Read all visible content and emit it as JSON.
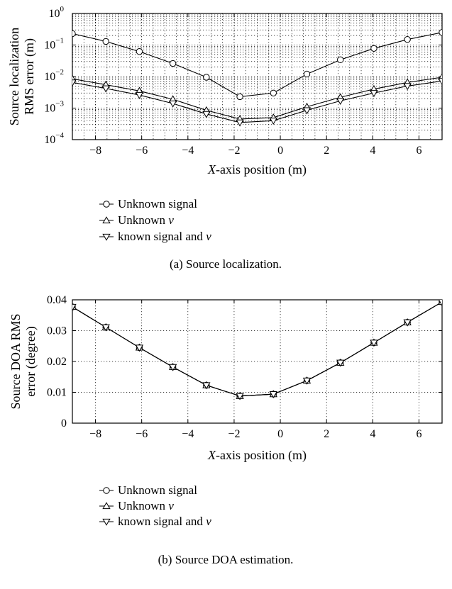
{
  "chart_data": [
    {
      "type": "line",
      "xlabel_prefix": "X",
      "xlabel_rest": "-axis position (m)",
      "ylabel_lines": [
        "Source localization",
        "RMS error (m)"
      ],
      "yscale": "log",
      "xlim": [
        -9,
        7
      ],
      "ylim": [
        0.0001,
        1
      ],
      "grid": true,
      "x_ticks": [
        "−8",
        "−6",
        "−4",
        "−2",
        "0",
        "2",
        "4",
        "6"
      ],
      "x_tick_values": [
        -8,
        -6,
        -4,
        -2,
        0,
        2,
        4,
        6
      ],
      "y_ticks": [
        {
          "base": "10",
          "exp": "0",
          "value": 1
        },
        {
          "base": "10",
          "exp": "−1",
          "value": 0.1
        },
        {
          "base": "10",
          "exp": "−2",
          "value": 0.01
        },
        {
          "base": "10",
          "exp": "−3",
          "value": 0.001
        },
        {
          "base": "10",
          "exp": "−4",
          "value": 0.0001
        }
      ],
      "x": [
        -9,
        -7.55,
        -6.1,
        -4.65,
        -3.2,
        -1.75,
        -0.3,
        1.15,
        2.6,
        4.05,
        5.5,
        7
      ],
      "series": [
        {
          "name": "Unknown signal",
          "marker": "circle",
          "values": [
            0.23,
            0.13,
            0.062,
            0.026,
            0.0095,
            0.0023,
            0.003,
            0.012,
            0.034,
            0.078,
            0.15,
            0.25
          ]
        },
        {
          "name": "Unknown ν",
          "marker": "triangle-up",
          "values": [
            0.0085,
            0.0055,
            0.0035,
            0.0019,
            0.00085,
            0.00045,
            0.0005,
            0.0011,
            0.0022,
            0.004,
            0.0065,
            0.0095
          ]
        },
        {
          "name": "known signal and ν",
          "marker": "triangle-down",
          "values": [
            0.0065,
            0.0042,
            0.0026,
            0.0014,
            0.00065,
            0.00035,
            0.0004,
            0.00085,
            0.0017,
            0.003,
            0.005,
            0.0072
          ]
        }
      ],
      "legend": [
        "Unknown signal",
        "Unknown ν",
        "known signal and ν"
      ],
      "caption": "(a) Source localization."
    },
    {
      "type": "line",
      "xlabel_prefix": "X",
      "xlabel_rest": "-axis position (m)",
      "ylabel_lines": [
        "Source DOA RMS",
        "error (degree)"
      ],
      "yscale": "linear",
      "xlim": [
        -9,
        7
      ],
      "ylim": [
        0,
        0.04
      ],
      "grid": true,
      "x_ticks": [
        "−8",
        "−6",
        "−4",
        "−2",
        "0",
        "2",
        "4",
        "6"
      ],
      "x_tick_values": [
        -8,
        -6,
        -4,
        -2,
        0,
        2,
        4,
        6
      ],
      "y_ticks": [
        {
          "label": "0.04",
          "value": 0.04
        },
        {
          "label": "0.03",
          "value": 0.03
        },
        {
          "label": "0.02",
          "value": 0.02
        },
        {
          "label": "0.01",
          "value": 0.01
        },
        {
          "label": "0",
          "value": 0
        }
      ],
      "x": [
        -9,
        -7.55,
        -6.1,
        -4.65,
        -3.2,
        -1.75,
        -0.3,
        1.15,
        2.6,
        4.05,
        5.5,
        7
      ],
      "series": [
        {
          "name": "Unknown signal",
          "marker": "circle",
          "values": [
            0.0377,
            0.0311,
            0.0245,
            0.0182,
            0.0123,
            0.0088,
            0.0094,
            0.0138,
            0.0196,
            0.0261,
            0.0327,
            0.0393
          ]
        },
        {
          "name": "Unknown ν",
          "marker": "triangle-up",
          "values": [
            0.0377,
            0.0311,
            0.0245,
            0.0182,
            0.0123,
            0.0088,
            0.0094,
            0.0138,
            0.0196,
            0.0261,
            0.0327,
            0.0393
          ]
        },
        {
          "name": "known signal and ν",
          "marker": "triangle-down",
          "values": [
            0.0377,
            0.0311,
            0.0245,
            0.0182,
            0.0123,
            0.0088,
            0.0094,
            0.0138,
            0.0196,
            0.0261,
            0.0327,
            0.0393
          ]
        }
      ],
      "legend": [
        "Unknown signal",
        "Unknown ν",
        "known signal and ν"
      ],
      "caption": "(b) Source DOA estimation."
    }
  ]
}
